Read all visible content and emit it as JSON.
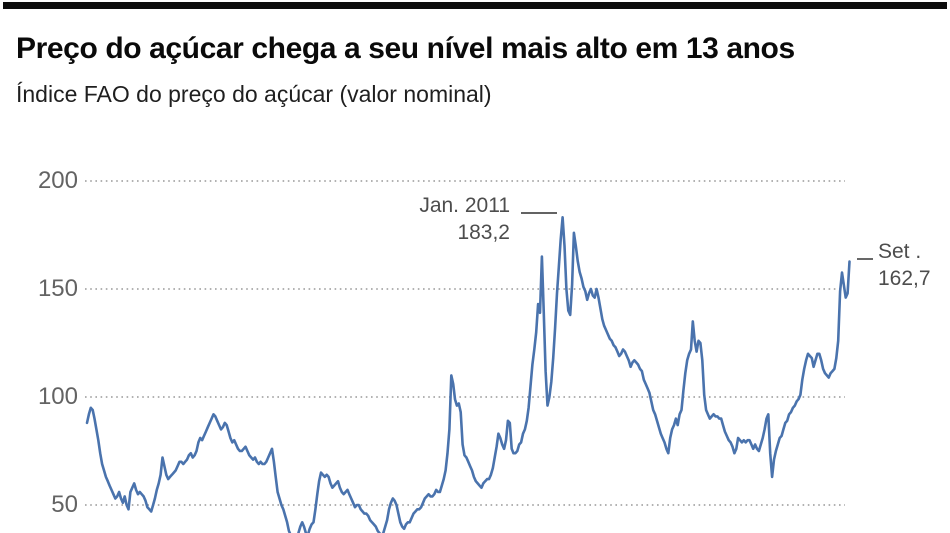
{
  "header": {
    "title": "Preço do açúcar chega a seu nível mais alto em 13 anos",
    "subtitle": "Índice FAO do preço do açúcar (valor nominal)"
  },
  "chart_data": {
    "type": "line",
    "title": "Preço do açúcar chega a seu nível mais alto em 13 anos",
    "subtitle": "Índice FAO do preço do açúcar (valor nominal)",
    "frequency": "monthly",
    "x_start": "1990-01",
    "x_end": "2023-09",
    "yticks": [
      50,
      100,
      150,
      200
    ],
    "ytick_labels": [
      "50",
      "100",
      "150",
      "200"
    ],
    "ylim_visible": [
      37,
      210
    ],
    "grid": "horizontal-dotted",
    "legend": "none",
    "line_color": "#4a73ad",
    "grid_color": "#999999",
    "series": [
      {
        "name": "Índice FAO do preço do açúcar (valor nominal)",
        "values": [
          88,
          92,
          95,
          94,
          90,
          85,
          80,
          74,
          69,
          66,
          63,
          61,
          59,
          57,
          55,
          53,
          54,
          56,
          53,
          51,
          54,
          50,
          48,
          56,
          58,
          60,
          57,
          55,
          56,
          55,
          54,
          52,
          49,
          48,
          47,
          50,
          53,
          57,
          60,
          64,
          72,
          68,
          64,
          62,
          63,
          64,
          65,
          66,
          68,
          70,
          70,
          69,
          70,
          71,
          73,
          74,
          72,
          73,
          75,
          79,
          81,
          80,
          82,
          84,
          86,
          88,
          90,
          92,
          91,
          89,
          87,
          85,
          86,
          88,
          87,
          84,
          81,
          79,
          80,
          78,
          76,
          75,
          75,
          76,
          77,
          75,
          73,
          72,
          71,
          72,
          70,
          69,
          70,
          69,
          69,
          70,
          72,
          74,
          76,
          70,
          63,
          56,
          53,
          50,
          48,
          45,
          42,
          38,
          36,
          34,
          33,
          34,
          37,
          40,
          42,
          40,
          37,
          36,
          39,
          41,
          42,
          48,
          55,
          61,
          65,
          64,
          63,
          64,
          63,
          60,
          58,
          59,
          60,
          61,
          58,
          56,
          55,
          56,
          57,
          55,
          53,
          51,
          49,
          50,
          50,
          48,
          47,
          46,
          46,
          45,
          43,
          42,
          41,
          40,
          38,
          37,
          36,
          37,
          40,
          43,
          48,
          51,
          53,
          52,
          50,
          46,
          42,
          40,
          39,
          41,
          42,
          42,
          44,
          46,
          47,
          48,
          48,
          49,
          51,
          53,
          54,
          55,
          54,
          54,
          55,
          57,
          56,
          56,
          59,
          62,
          66,
          74,
          85,
          110,
          106,
          99,
          96,
          97,
          93,
          78,
          73,
          72,
          70,
          68,
          66,
          63,
          61,
          60,
          59,
          58,
          60,
          61,
          62,
          62,
          64,
          67,
          72,
          77,
          83,
          81,
          78,
          76,
          80,
          89,
          88,
          76,
          74,
          74,
          75,
          78,
          79,
          83,
          85,
          89,
          95,
          105,
          115,
          122,
          130,
          143,
          139,
          165,
          140,
          112,
          96,
          100,
          107,
          118,
          132,
          148,
          160,
          173,
          183.2,
          170,
          150,
          140,
          138,
          152,
          176,
          170,
          163,
          158,
          155,
          151,
          149,
          145,
          148,
          150,
          147,
          146,
          150,
          146,
          141,
          136,
          133,
          131,
          129,
          127,
          126,
          124,
          123,
          121,
          119,
          120,
          122,
          121,
          119,
          117,
          114,
          116,
          117,
          116,
          115,
          113,
          112,
          108,
          106,
          104,
          102,
          98,
          94,
          92,
          89,
          86,
          83,
          81,
          79,
          76,
          74,
          81,
          85,
          87,
          90,
          87,
          92,
          94,
          103,
          111,
          117,
          120,
          122,
          135,
          126,
          121,
          126,
          125,
          117,
          101,
          94,
          92,
          90,
          91,
          92,
          91,
          91,
          90,
          90,
          87,
          84,
          82,
          80,
          79,
          77,
          74,
          76,
          81,
          80,
          79,
          80,
          79,
          80,
          80,
          78,
          76,
          78,
          76,
          75,
          78,
          81,
          85,
          90,
          92,
          74,
          63,
          71,
          75,
          78,
          81,
          82,
          85,
          88,
          89,
          92,
          93,
          95,
          96,
          98,
          99,
          101,
          108,
          113,
          117,
          120,
          119,
          118,
          114,
          117,
          120,
          120,
          117,
          113,
          111,
          110,
          109,
          111,
          112,
          113,
          118,
          126,
          149,
          157.6,
          152,
          146,
          148,
          162.7
        ]
      }
    ],
    "annotations": [
      {
        "label": "Jan. 2011",
        "value_label": "183,2",
        "x": "2011-01",
        "y": 183.2
      },
      {
        "label": "Set .",
        "value_label": "162,7",
        "x": "2023-09",
        "y": 162.7
      }
    ]
  }
}
